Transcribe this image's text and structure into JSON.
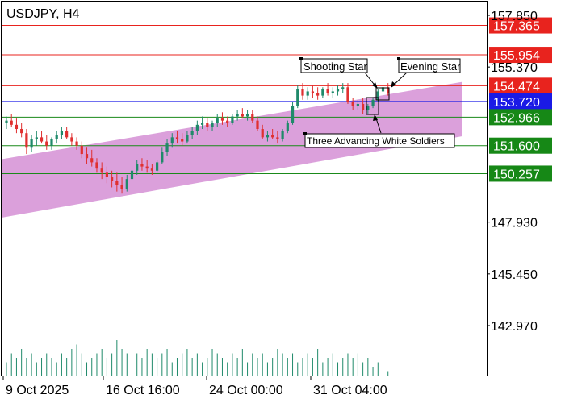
{
  "chart_data": {
    "type": "candlestick",
    "symbol": "USDJPY",
    "timeframe": "H4",
    "title": "USDJPY, H4",
    "y_ticks": [
      "157.850",
      "155.370",
      "147.930",
      "145.450",
      "142.970"
    ],
    "x_ticks": [
      "9 Oct 2025",
      "16 Oct 16:00",
      "24 Oct 00:00",
      "31 Oct 04:00"
    ],
    "ylim": [
      141.3,
      158.8
    ],
    "levels": [
      {
        "value": 157.365,
        "label": "157.365",
        "color": "#e8231e",
        "label_bg": "#e8231e",
        "line": "#e8231e"
      },
      {
        "value": 155.954,
        "label": "155.954",
        "color": "#e8231e",
        "label_bg": "#e8231e",
        "line": "#e8231e"
      },
      {
        "value": 154.474,
        "label": "154.474",
        "color": "#e8231e",
        "label_bg": "#e8231e",
        "line": "#e8231e"
      },
      {
        "value": 153.72,
        "label": "153.720",
        "color": "#1a1ae6",
        "label_bg": "#1a1ae6",
        "line": "#1a1ae6"
      },
      {
        "value": 152.966,
        "label": "152.966",
        "color": "#1a8a1a",
        "label_bg": "#168816",
        "line": "#1a8a1a"
      },
      {
        "value": 151.6,
        "label": "151.600",
        "color": "#1a8a1a",
        "label_bg": "#168816",
        "line": "#1a8a1a"
      },
      {
        "value": 150.257,
        "label": "150.257",
        "color": "#1a8a1a",
        "label_bg": "#168816",
        "line": "#1a8a1a"
      }
    ],
    "annotations": [
      {
        "text": "Shooting Star",
        "pattern": "shooting-star"
      },
      {
        "text": "Evening Star",
        "pattern": "evening-star"
      },
      {
        "text": "Three Advancing White Soldiers",
        "pattern": "three-advancing-white-soldiers"
      }
    ],
    "series": [
      {
        "values": [
          [
            152.7,
            153.0,
            152.4,
            152.8
          ],
          [
            152.8,
            153.1,
            152.5,
            152.6
          ],
          [
            152.6,
            152.9,
            152.2,
            152.4
          ],
          [
            152.4,
            152.7,
            152.0,
            152.2
          ],
          [
            152.2,
            152.4,
            151.2,
            151.5
          ],
          [
            151.5,
            152.1,
            151.3,
            151.9
          ],
          [
            151.9,
            152.3,
            151.6,
            152.0
          ],
          [
            152.0,
            152.3,
            151.7,
            151.8
          ],
          [
            151.8,
            152.1,
            151.4,
            151.6
          ],
          [
            151.6,
            152.0,
            151.4,
            151.9
          ],
          [
            151.9,
            152.3,
            151.7,
            152.1
          ],
          [
            152.1,
            152.5,
            151.9,
            152.3
          ],
          [
            152.3,
            152.5,
            151.9,
            152.0
          ],
          [
            152.0,
            152.2,
            151.6,
            151.8
          ],
          [
            151.8,
            152.0,
            151.4,
            151.6
          ],
          [
            151.6,
            151.8,
            151.0,
            151.2
          ],
          [
            151.2,
            151.5,
            150.7,
            151.0
          ],
          [
            151.0,
            151.4,
            150.6,
            150.8
          ],
          [
            150.8,
            151.0,
            150.3,
            150.5
          ],
          [
            150.5,
            150.8,
            150.0,
            150.3
          ],
          [
            150.3,
            150.6,
            149.8,
            150.1
          ],
          [
            150.1,
            150.4,
            149.6,
            149.9
          ],
          [
            149.9,
            150.3,
            149.4,
            149.7
          ],
          [
            149.7,
            150.1,
            149.3,
            149.5
          ],
          [
            149.5,
            150.2,
            149.4,
            150.0
          ],
          [
            150.0,
            150.6,
            149.9,
            150.4
          ],
          [
            150.4,
            150.9,
            150.2,
            150.7
          ],
          [
            150.7,
            151.0,
            150.4,
            150.6
          ],
          [
            150.6,
            150.9,
            150.3,
            150.5
          ],
          [
            150.5,
            150.7,
            150.2,
            150.4
          ],
          [
            150.4,
            150.9,
            150.3,
            150.8
          ],
          [
            150.8,
            151.5,
            150.7,
            151.3
          ],
          [
            151.3,
            151.9,
            151.1,
            151.7
          ],
          [
            151.7,
            152.2,
            151.5,
            152.0
          ],
          [
            152.0,
            152.3,
            151.7,
            151.9
          ],
          [
            151.9,
            152.2,
            151.6,
            151.8
          ],
          [
            151.8,
            152.3,
            151.7,
            152.1
          ],
          [
            152.1,
            152.5,
            151.9,
            152.3
          ],
          [
            152.3,
            152.8,
            152.1,
            152.6
          ],
          [
            152.6,
            153.0,
            152.4,
            152.7
          ],
          [
            152.7,
            152.9,
            152.3,
            152.5
          ],
          [
            152.5,
            152.8,
            152.3,
            152.7
          ],
          [
            152.7,
            153.1,
            152.5,
            152.9
          ],
          [
            152.9,
            153.2,
            152.6,
            152.8
          ],
          [
            152.8,
            153.0,
            152.5,
            152.7
          ],
          [
            152.7,
            153.1,
            152.6,
            153.0
          ],
          [
            153.0,
            153.3,
            152.8,
            153.1
          ],
          [
            153.1,
            153.4,
            152.9,
            153.0
          ],
          [
            153.0,
            153.3,
            152.8,
            153.1
          ],
          [
            153.1,
            153.3,
            152.7,
            152.8
          ],
          [
            152.8,
            153.0,
            152.3,
            152.4
          ],
          [
            152.4,
            152.6,
            151.9,
            152.0
          ],
          [
            152.0,
            152.3,
            151.8,
            152.1
          ],
          [
            152.1,
            152.4,
            151.9,
            152.0
          ],
          [
            152.0,
            152.3,
            151.7,
            151.9
          ],
          [
            151.9,
            152.4,
            151.8,
            152.3
          ],
          [
            152.3,
            152.8,
            152.2,
            152.7
          ],
          [
            152.7,
            153.7,
            152.6,
            153.5
          ],
          [
            153.5,
            154.5,
            153.4,
            154.3
          ],
          [
            154.3,
            154.6,
            153.8,
            154.0
          ],
          [
            154.0,
            154.4,
            153.8,
            154.2
          ],
          [
            154.2,
            154.5,
            153.9,
            154.1
          ],
          [
            154.1,
            154.4,
            153.8,
            154.0
          ],
          [
            154.0,
            154.4,
            153.9,
            154.3
          ],
          [
            154.3,
            154.6,
            154.0,
            154.1
          ],
          [
            154.1,
            154.4,
            153.9,
            154.2
          ],
          [
            154.2,
            154.5,
            154.0,
            154.3
          ],
          [
            154.3,
            154.6,
            154.1,
            154.4
          ],
          [
            154.4,
            154.6,
            153.6,
            153.7
          ],
          [
            153.7,
            153.9,
            153.3,
            153.5
          ],
          [
            153.5,
            153.8,
            153.3,
            153.6
          ],
          [
            153.6,
            153.9,
            153.1,
            153.3
          ],
          [
            153.3,
            153.6,
            153.1,
            153.5
          ],
          [
            153.5,
            153.9,
            153.4,
            153.8
          ],
          [
            153.8,
            154.3,
            153.7,
            154.2
          ],
          [
            154.2,
            154.5,
            154.0,
            154.4
          ],
          [
            154.4,
            154.6,
            154.0,
            154.1
          ]
        ]
      }
    ],
    "volume": [
      3,
      5,
      4,
      6,
      4,
      5,
      3,
      4,
      5,
      4,
      3,
      5,
      4,
      6,
      7,
      5,
      3,
      4,
      5,
      6,
      4,
      5,
      8,
      6,
      5,
      7,
      5,
      4,
      6,
      5,
      4,
      5,
      6,
      3,
      4,
      5,
      6,
      4,
      5,
      3,
      4,
      6,
      5,
      4,
      3,
      5,
      4,
      6,
      3,
      5,
      4,
      5,
      3,
      4,
      6,
      5,
      4,
      5,
      3,
      4,
      5,
      4,
      6,
      3,
      4,
      5,
      3,
      4,
      5,
      4,
      5,
      3,
      4,
      2,
      3,
      2,
      1
    ],
    "channel": {
      "upper_start": 150.95,
      "upper_end": 154.65,
      "lower_start": 148.15,
      "lower_end": 152.05
    }
  }
}
